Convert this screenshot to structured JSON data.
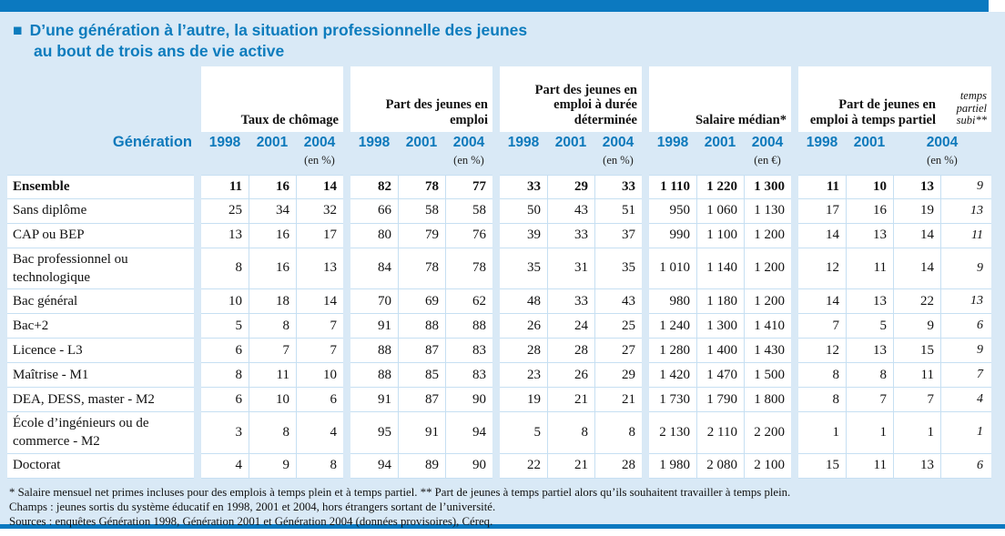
{
  "title": {
    "bullet": "■",
    "line1": "D’une génération à l’autre, la situation professionnelle des jeunes",
    "line2": "au bout de trois ans de vie active"
  },
  "colors": {
    "bar_blue": "#0b79c0",
    "background_blue": "#d9e9f6",
    "accent_blue": "#0e79bb",
    "grid_line": "#c6dff2"
  },
  "table": {
    "generation_label": "Génération",
    "groups": [
      {
        "title": "Taux de chômage",
        "years": [
          "1998",
          "2001",
          "2004"
        ],
        "unit": "(en %)"
      },
      {
        "title": "Part des jeunes en emploi",
        "years": [
          "1998",
          "2001",
          "2004"
        ],
        "unit": "(en %)"
      },
      {
        "title": "Part des jeunes en emploi à durée déterminée",
        "years": [
          "1998",
          "2001",
          "2004"
        ],
        "unit": "(en %)"
      },
      {
        "title": "Salaire médian*",
        "years": [
          "1998",
          "2001",
          "2004"
        ],
        "unit": "(en €)"
      },
      {
        "title": "Part de jeunes en emploi à temps partiel",
        "side_note": "temps partiel subi**",
        "years": [
          "1998",
          "2001",
          "2004"
        ],
        "unit": "(en %)"
      }
    ],
    "rows": [
      {
        "label": "Ensemble",
        "bold": true,
        "values": [
          [
            "11",
            "16",
            "14"
          ],
          [
            "82",
            "78",
            "77"
          ],
          [
            "33",
            "29",
            "33"
          ],
          [
            "1 110",
            "1 220",
            "1 300"
          ],
          [
            "11",
            "10",
            "13"
          ]
        ],
        "subi": "9"
      },
      {
        "label": "Sans diplôme",
        "bold": false,
        "values": [
          [
            "25",
            "34",
            "32"
          ],
          [
            "66",
            "58",
            "58"
          ],
          [
            "50",
            "43",
            "51"
          ],
          [
            "950",
            "1 060",
            "1 130"
          ],
          [
            "17",
            "16",
            "19"
          ]
        ],
        "subi": "13"
      },
      {
        "label": "CAP ou BEP",
        "bold": false,
        "values": [
          [
            "13",
            "16",
            "17"
          ],
          [
            "80",
            "79",
            "76"
          ],
          [
            "39",
            "33",
            "37"
          ],
          [
            "990",
            "1 100",
            "1 200"
          ],
          [
            "14",
            "13",
            "14"
          ]
        ],
        "subi": "11"
      },
      {
        "label": "Bac professionnel ou technologique",
        "bold": false,
        "values": [
          [
            "8",
            "16",
            "13"
          ],
          [
            "84",
            "78",
            "78"
          ],
          [
            "35",
            "31",
            "35"
          ],
          [
            "1 010",
            "1 140",
            "1 200"
          ],
          [
            "12",
            "11",
            "14"
          ]
        ],
        "subi": "9"
      },
      {
        "label": "Bac général",
        "bold": false,
        "values": [
          [
            "10",
            "18",
            "14"
          ],
          [
            "70",
            "69",
            "62"
          ],
          [
            "48",
            "33",
            "43"
          ],
          [
            "980",
            "1 180",
            "1 200"
          ],
          [
            "14",
            "13",
            "22"
          ]
        ],
        "subi": "13"
      },
      {
        "label": "Bac+2",
        "bold": false,
        "values": [
          [
            "5",
            "8",
            "7"
          ],
          [
            "91",
            "88",
            "88"
          ],
          [
            "26",
            "24",
            "25"
          ],
          [
            "1 240",
            "1 300",
            "1 410"
          ],
          [
            "7",
            "5",
            "9"
          ]
        ],
        "subi": "6"
      },
      {
        "label": "Licence - L3",
        "bold": false,
        "values": [
          [
            "6",
            "7",
            "7"
          ],
          [
            "88",
            "87",
            "83"
          ],
          [
            "28",
            "28",
            "27"
          ],
          [
            "1 280",
            "1 400",
            "1 430"
          ],
          [
            "12",
            "13",
            "15"
          ]
        ],
        "subi": "9"
      },
      {
        "label": "Maîtrise - M1",
        "bold": false,
        "values": [
          [
            "8",
            "11",
            "10"
          ],
          [
            "88",
            "85",
            "83"
          ],
          [
            "23",
            "26",
            "29"
          ],
          [
            "1 420",
            "1 470",
            "1 500"
          ],
          [
            "8",
            "8",
            "11"
          ]
        ],
        "subi": "7"
      },
      {
        "label": "DEA, DESS, master - M2",
        "bold": false,
        "values": [
          [
            "6",
            "10",
            "6"
          ],
          [
            "91",
            "87",
            "90"
          ],
          [
            "19",
            "21",
            "21"
          ],
          [
            "1 730",
            "1 790",
            "1 800"
          ],
          [
            "8",
            "7",
            "7"
          ]
        ],
        "subi": "4"
      },
      {
        "label": "École d’ingénieurs ou de commerce - M2",
        "bold": false,
        "values": [
          [
            "3",
            "8",
            "4"
          ],
          [
            "95",
            "91",
            "94"
          ],
          [
            "5",
            "8",
            "8"
          ],
          [
            "2 130",
            "2 110",
            "2 200"
          ],
          [
            "1",
            "1",
            "1"
          ]
        ],
        "subi": "1"
      },
      {
        "label": "Doctorat",
        "bold": false,
        "values": [
          [
            "4",
            "9",
            "8"
          ],
          [
            "94",
            "89",
            "90"
          ],
          [
            "22",
            "21",
            "28"
          ],
          [
            "1 980",
            "2 080",
            "2 100"
          ],
          [
            "15",
            "11",
            "13"
          ]
        ],
        "subi": "6"
      }
    ]
  },
  "footnotes": [
    "* Salaire mensuel net primes incluses pour des emplois à temps plein et à temps partiel. ** Part de jeunes à temps partiel alors qu’ils souhaitent travailler à temps plein.",
    "Champs : jeunes sortis du système éducatif en 1998, 2001 et 2004, hors étrangers sortant de l’université.",
    "Sources : enquêtes Génération 1998, Génération 2001 et Génération 2004 (données provisoires), Céreq."
  ]
}
